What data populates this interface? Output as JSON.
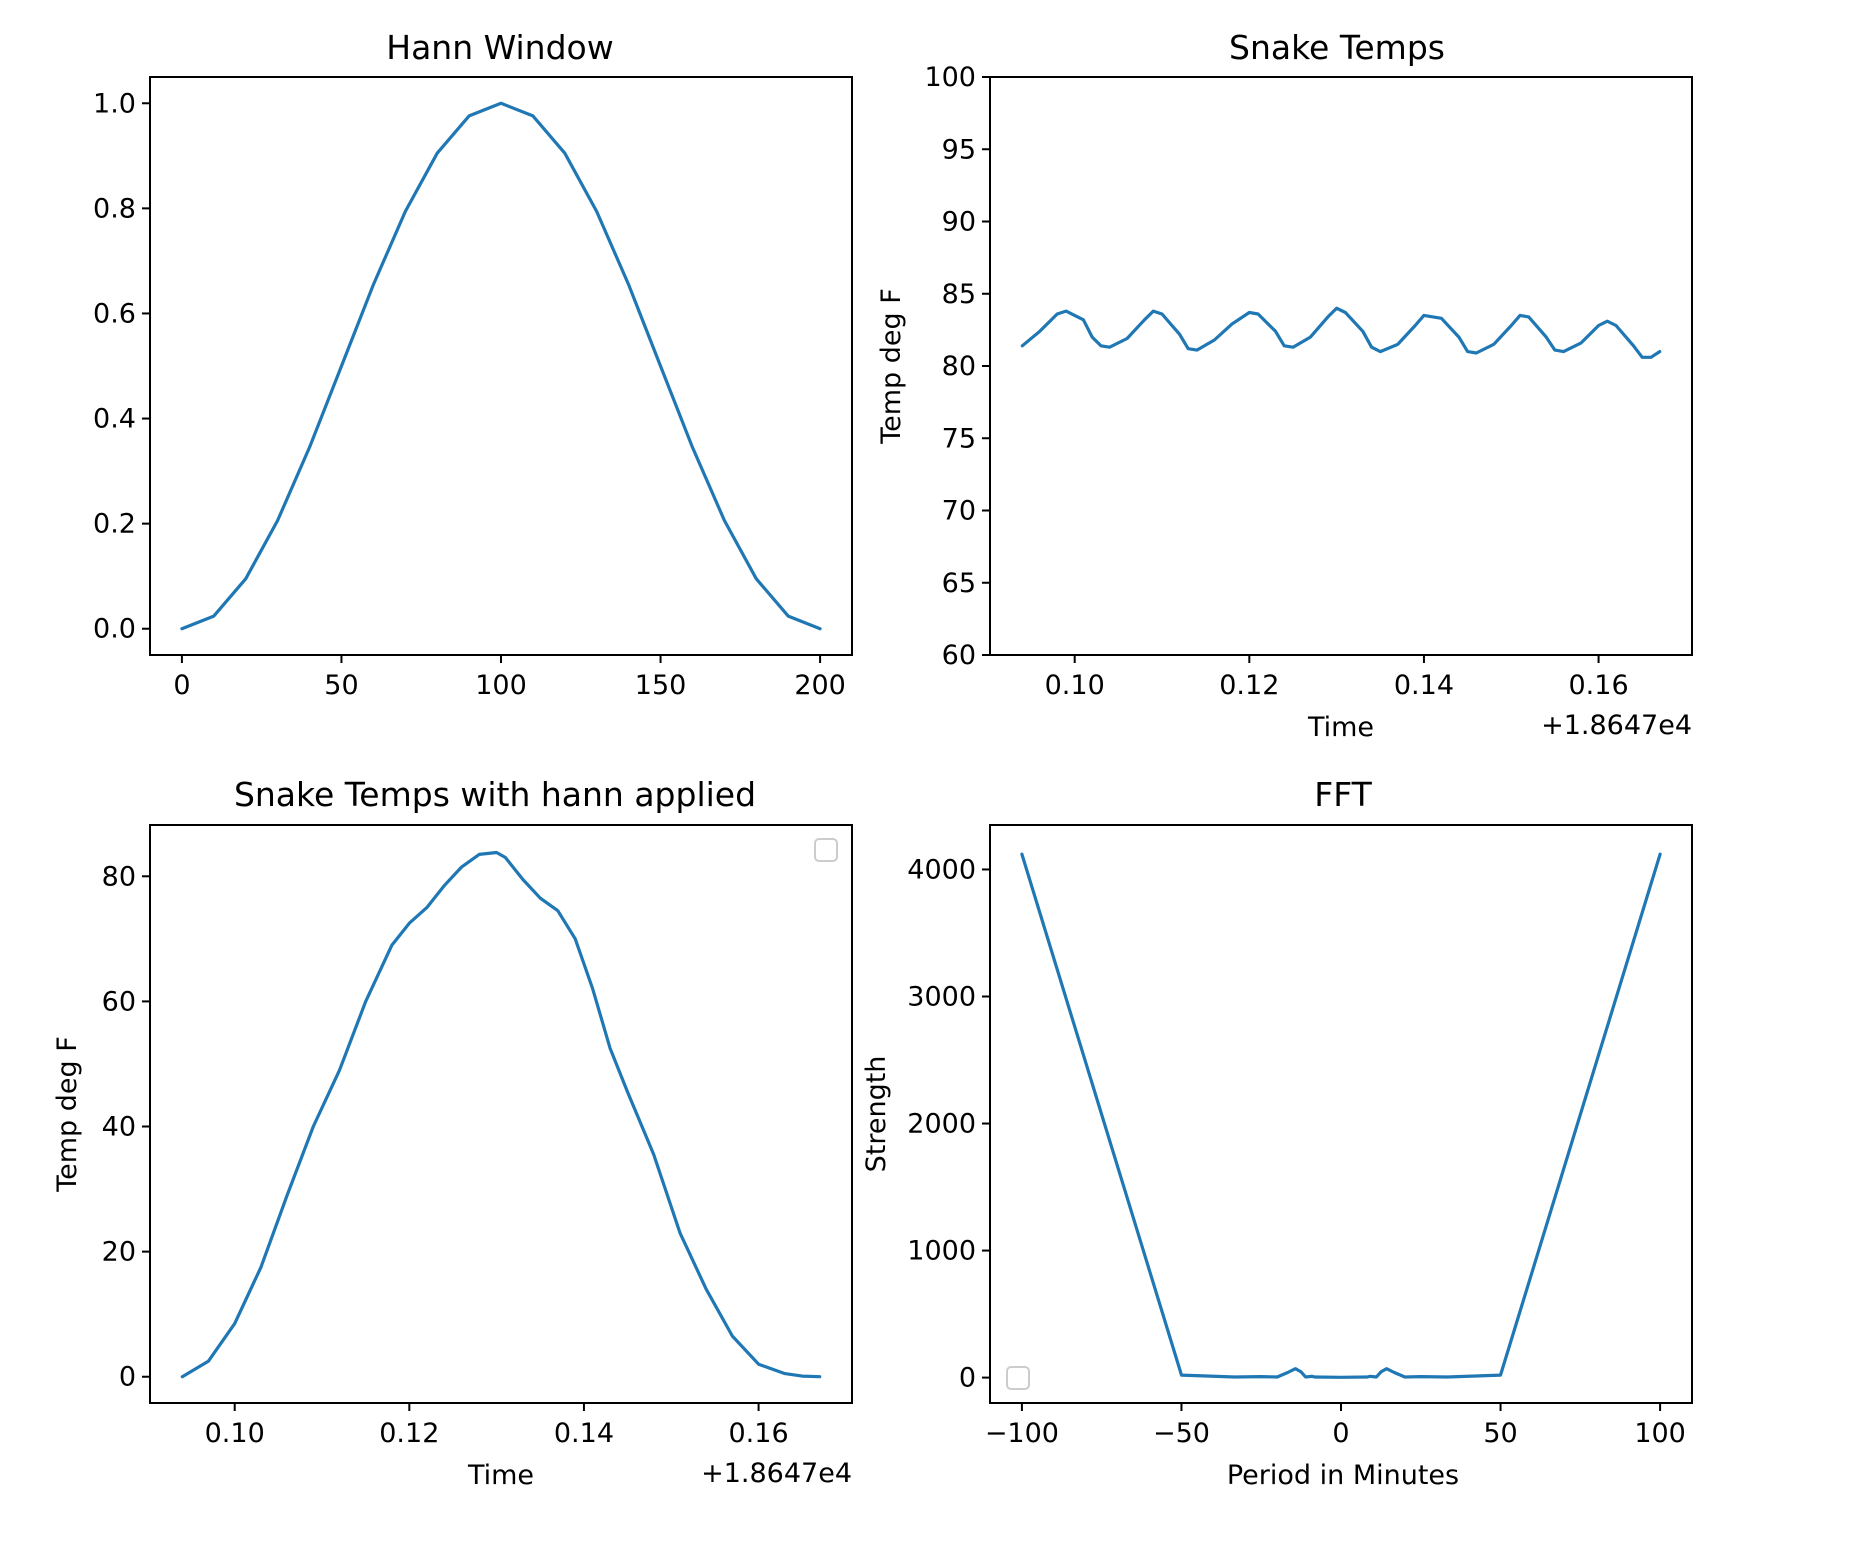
{
  "colors": {
    "line": "#1f77b4",
    "axes": "#000000",
    "legend_border": "#cccccc"
  },
  "chart_data": [
    {
      "type": "line",
      "title": "Hann Window",
      "xlabel": "",
      "ylabel": "",
      "xlim": [
        -10,
        210
      ],
      "ylim": [
        -0.05,
        1.05
      ],
      "xticks": [
        0,
        50,
        100,
        150,
        200
      ],
      "xtick_labels": [
        "0",
        "50",
        "100",
        "150",
        "200"
      ],
      "yticks": [
        0.0,
        0.2,
        0.4,
        0.6,
        0.8,
        1.0
      ],
      "ytick_labels": [
        "0.0",
        "0.2",
        "0.4",
        "0.6",
        "0.8",
        "1.0"
      ],
      "offset_text": "",
      "legend": false,
      "grid": false,
      "series": [
        {
          "x": [
            0,
            10,
            20,
            30,
            40,
            50,
            60,
            70,
            80,
            90,
            100,
            110,
            120,
            130,
            140,
            150,
            160,
            170,
            180,
            190,
            200
          ],
          "y": [
            0,
            0.024,
            0.095,
            0.206,
            0.345,
            0.5,
            0.655,
            0.794,
            0.905,
            0.976,
            1.0,
            0.976,
            0.905,
            0.794,
            0.655,
            0.5,
            0.345,
            0.206,
            0.095,
            0.024,
            0
          ]
        }
      ]
    },
    {
      "type": "line",
      "title": "Snake Temps",
      "xlabel": "Time",
      "ylabel": "Temp deg F",
      "xlim": [
        0.0903,
        0.1707
      ],
      "ylim": [
        60,
        100
      ],
      "xticks": [
        0.1,
        0.12,
        0.14,
        0.16
      ],
      "xtick_labels": [
        "0.10",
        "0.12",
        "0.14",
        "0.16"
      ],
      "yticks": [
        60,
        65,
        70,
        75,
        80,
        85,
        90,
        95,
        100
      ],
      "ytick_labels": [
        "60",
        "65",
        "70",
        "75",
        "80",
        "85",
        "90",
        "95",
        "100"
      ],
      "offset_text": "+1.8647e4",
      "legend": false,
      "grid": false,
      "series": [
        {
          "x": [
            0.094,
            0.096,
            0.098,
            0.099,
            0.101,
            0.102,
            0.103,
            0.104,
            0.106,
            0.108,
            0.109,
            0.11,
            0.112,
            0.113,
            0.114,
            0.116,
            0.118,
            0.12,
            0.121,
            0.123,
            0.124,
            0.125,
            0.127,
            0.129,
            0.13,
            0.131,
            0.133,
            0.134,
            0.135,
            0.137,
            0.139,
            0.14,
            0.142,
            0.144,
            0.145,
            0.146,
            0.148,
            0.15,
            0.151,
            0.152,
            0.154,
            0.155,
            0.156,
            0.158,
            0.16,
            0.161,
            0.162,
            0.164,
            0.165,
            0.166,
            0.167
          ],
          "y": [
            81.4,
            82.4,
            83.6,
            83.8,
            83.2,
            82.0,
            81.4,
            81.3,
            81.9,
            83.2,
            83.8,
            83.6,
            82.2,
            81.2,
            81.1,
            81.8,
            82.9,
            83.7,
            83.6,
            82.4,
            81.4,
            81.3,
            82.0,
            83.4,
            84.0,
            83.7,
            82.4,
            81.3,
            81.0,
            81.5,
            82.8,
            83.5,
            83.3,
            82.0,
            81.0,
            80.9,
            81.5,
            82.8,
            83.5,
            83.4,
            82.0,
            81.1,
            81.0,
            81.6,
            82.8,
            83.1,
            82.8,
            81.4,
            80.6,
            80.6,
            81.0
          ]
        }
      ]
    },
    {
      "type": "line",
      "title": "Snake Temps with hann applied",
      "xlabel": "Time",
      "ylabel": "Temp deg F",
      "xlim": [
        0.0903,
        0.1707
      ],
      "ylim": [
        -4.2,
        88.2
      ],
      "xticks": [
        0.1,
        0.12,
        0.14,
        0.16
      ],
      "xtick_labels": [
        "0.10",
        "0.12",
        "0.14",
        "0.16"
      ],
      "yticks": [
        0,
        20,
        40,
        60,
        80
      ],
      "ytick_labels": [
        "0",
        "20",
        "40",
        "60",
        "80"
      ],
      "offset_text": "+1.8647e4",
      "legend": true,
      "legend_loc": "upper right",
      "grid": false,
      "series": [
        {
          "x": [
            0.094,
            0.097,
            0.1,
            0.103,
            0.106,
            0.109,
            0.112,
            0.115,
            0.118,
            0.12,
            0.122,
            0.124,
            0.126,
            0.128,
            0.13,
            0.131,
            0.133,
            0.135,
            0.137,
            0.139,
            0.141,
            0.143,
            0.145,
            0.148,
            0.151,
            0.154,
            0.157,
            0.16,
            0.163,
            0.165,
            0.167
          ],
          "y": [
            0,
            2.5,
            8.5,
            17.5,
            29.0,
            40.0,
            49.0,
            60.0,
            69.0,
            72.5,
            75.0,
            78.5,
            81.5,
            83.5,
            83.8,
            83.0,
            79.5,
            76.5,
            74.5,
            70.0,
            62.0,
            52.5,
            45.5,
            35.5,
            23.0,
            14.0,
            6.5,
            2.0,
            0.5,
            0.1,
            0
          ]
        }
      ]
    },
    {
      "type": "line",
      "title": "FFT",
      "xlabel": "Period in Minutes",
      "ylabel": "Strength",
      "xlim": [
        -110,
        110
      ],
      "ylim": [
        -200,
        4350
      ],
      "xticks": [
        -100,
        -50,
        0,
        50,
        100
      ],
      "xtick_labels": [
        "−100",
        "−50",
        "0",
        "50",
        "100"
      ],
      "yticks": [
        0,
        1000,
        2000,
        3000,
        4000
      ],
      "ytick_labels": [
        "0",
        "1000",
        "2000",
        "3000",
        "4000"
      ],
      "offset_text": "",
      "legend": true,
      "legend_loc": "lower left",
      "grid": false,
      "series": [
        {
          "x": [
            -100,
            -50,
            -33.3,
            -25,
            -20,
            -16.7,
            -14.3,
            -12.5,
            -11.1,
            -10,
            -9.1,
            -8.3,
            0,
            8.3,
            9.1,
            10,
            11.1,
            12.5,
            14.3,
            16.7,
            20,
            25,
            33.3,
            50,
            100
          ],
          "y": [
            4120,
            20,
            5,
            8,
            5,
            40,
            70,
            45,
            5,
            8,
            10,
            5,
            2,
            5,
            10,
            8,
            5,
            45,
            70,
            40,
            5,
            8,
            5,
            20,
            4120
          ]
        }
      ]
    }
  ]
}
